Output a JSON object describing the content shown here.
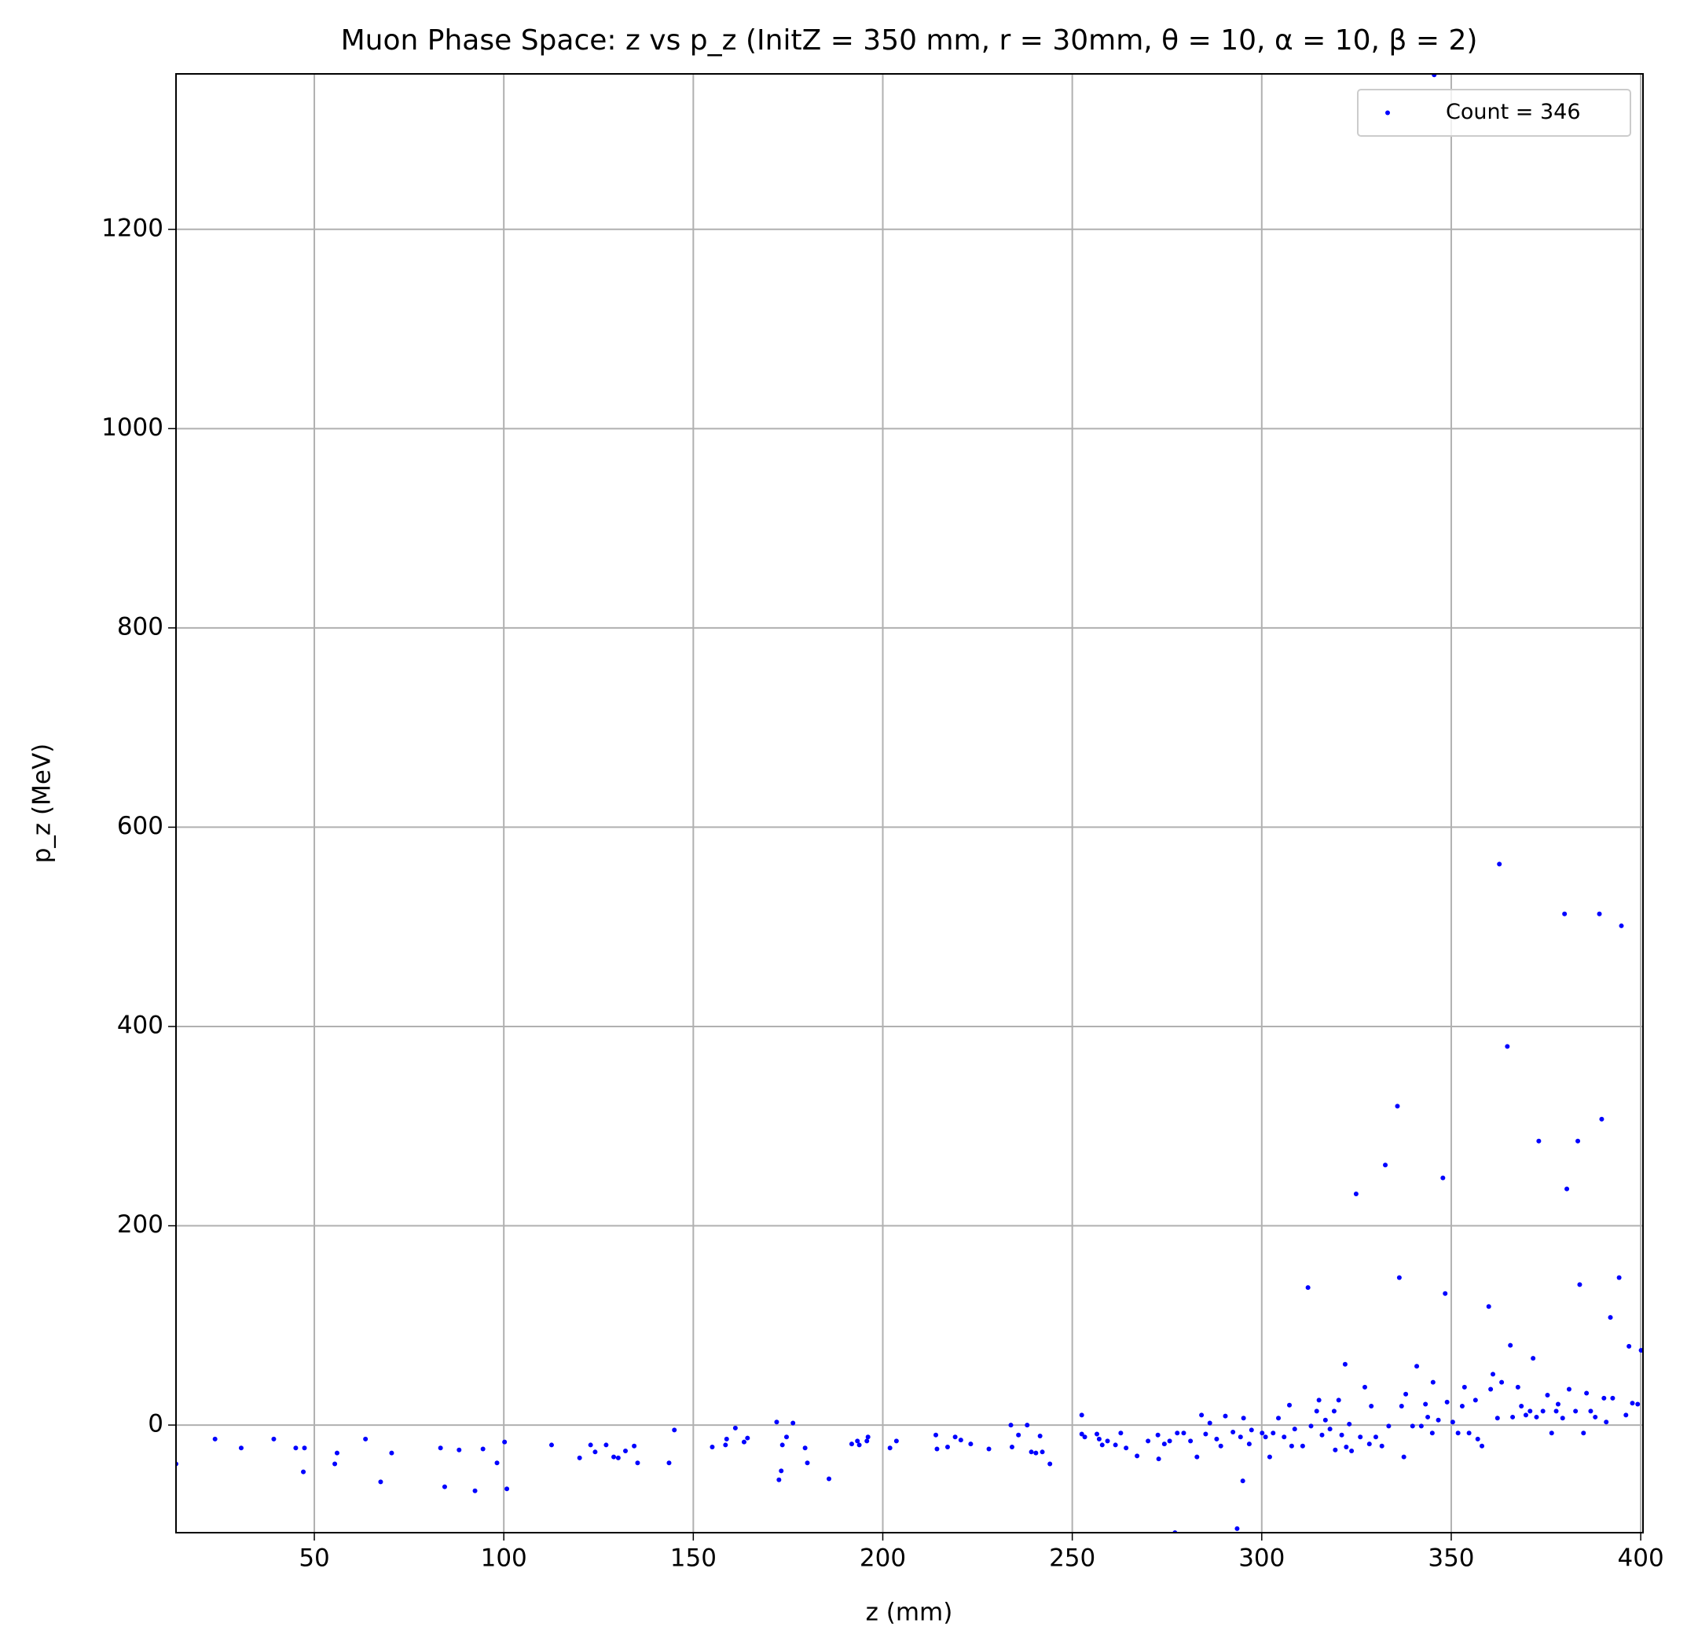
{
  "chart_data": {
    "type": "scatter",
    "title": "Muon Phase Space: z vs p_z (InitZ = 350 mm, r = 30mm, θ = 10, α = 10, β = 2)",
    "x_label": "z (mm)",
    "y_label": "p_z (MeV)",
    "x": [
      13.5,
      23.8,
      30.7,
      39.3,
      45.1,
      47.4,
      47.1,
      56,
      55.4,
      63.5,
      67.5,
      70.4,
      83.3,
      84.4,
      88.2,
      92.4,
      94.5,
      98.2,
      100.2,
      100.8,
      112.6,
      120,
      122.9,
      124.1,
      127,
      129,
      130.2,
      132.1,
      134.4,
      135.3,
      143.6,
      145,
      155,
      158.5,
      158.8,
      161.1,
      163.4,
      164.3,
      172,
      172.6,
      173.2,
      173.5,
      174.6,
      176.3,
      179.5,
      180.1,
      185.8,
      191.8,
      193.3,
      193.8,
      195.8,
      196.1,
      201.9,
      203.6,
      214,
      214.3,
      217.1,
      219.1,
      220.6,
      223.2,
      228,
      233.8,
      234.1,
      235.8,
      238.1,
      239.2,
      240.4,
      241.5,
      242.1,
      244.1,
      252.5,
      252.5,
      253.3,
      256.5,
      257.1,
      257.9,
      259.3,
      261.4,
      262.8,
      264.2,
      267.1,
      270,
      272.6,
      272.8,
      274.3,
      275.7,
      277.1,
      277.7,
      279.4,
      281.2,
      282.9,
      284.1,
      285.2,
      286.3,
      288.1,
      289.2,
      290.4,
      292.4,
      293.5,
      294.4,
      295,
      295.2,
      296.7,
      297.3,
      300.1,
      301,
      302.1,
      303,
      304.4,
      305.9,
      307.3,
      307.9,
      308.7,
      310.8,
      312.2,
      313,
      314.5,
      315.1,
      315.9,
      316.8,
      318,
      319.1,
      319.4,
      320.3,
      321.1,
      322,
      322.3,
      323.1,
      323.7,
      324.9,
      326,
      327.2,
      328.4,
      328.9,
      330.1,
      331.7,
      332.6,
      333.5,
      335.8,
      336.3,
      336.9,
      337.5,
      338,
      339.8,
      340.9,
      342.1,
      343.2,
      343.8,
      345,
      345.2,
      345.5,
      346.6,
      347.8,
      348.4,
      348.9,
      350.4,
      351.8,
      352.9,
      353.5,
      354.7,
      356.4,
      357,
      358.1,
      359.9,
      360.4,
      361,
      362.2,
      362.7,
      363.3,
      364.8,
      365.6,
      366.2,
      367.6,
      368.5,
      369.7,
      370.8,
      371.6,
      372.5,
      373.1,
      374.2,
      375.4,
      376.5,
      377.7,
      378.2,
      379.4,
      379.9,
      380.5,
      381.1,
      382.8,
      383.4,
      383.9,
      384.9,
      385.7,
      386.8,
      388,
      389.1,
      389.7,
      390.3,
      390.9,
      392,
      392.6,
      394.3,
      394.9,
      396.1,
      396.9,
      397.8,
      399.2,
      400.1
    ],
    "series": [
      {
        "name": "Count = 346",
        "color": "#0000ff",
        "values": [
          -39,
          -14,
          -23,
          -14,
          -23,
          -23,
          -47,
          -28,
          -39,
          -14,
          -57,
          -28,
          -23,
          -62,
          -25,
          -66,
          -24,
          -38,
          -17,
          -64,
          -20,
          -33,
          -20,
          -27,
          -20,
          -32,
          -33,
          -26,
          -21,
          -38,
          -38,
          -5,
          -22,
          -20,
          -14,
          -3,
          -17,
          -13,
          3,
          -55,
          -46,
          -20,
          -12,
          2,
          -23,
          -38,
          -54,
          -19,
          -16,
          -20,
          -16,
          -12,
          -23,
          -16,
          -10,
          -24,
          -22,
          -12,
          -15,
          -19,
          -24,
          0,
          -22,
          -10,
          0,
          -27,
          -28,
          -11,
          -27,
          -39,
          10,
          -9,
          -12,
          -9,
          -14,
          -20,
          -16,
          -20,
          -8,
          -23,
          -31,
          -16,
          -10,
          -34,
          -19,
          -16,
          -108,
          -8,
          -8,
          -16,
          -32,
          10,
          -9,
          2,
          -14,
          -21,
          9,
          -7,
          -104,
          -12,
          -56,
          7,
          -19,
          -5,
          -8,
          -12,
          -32,
          -8,
          7,
          -12,
          20,
          -21,
          -4,
          -21,
          138,
          -1,
          14,
          25,
          -10,
          5,
          -4,
          14,
          -25,
          25,
          -10,
          61,
          -22,
          1,
          -26,
          232,
          -12,
          38,
          -19,
          19,
          -12,
          -21,
          261,
          -1,
          320,
          148,
          19,
          -32,
          31,
          -1,
          59,
          -1,
          21,
          8,
          -8,
          43,
          1355,
          5,
          248,
          132,
          23,
          3,
          -8,
          19,
          38,
          -8,
          25,
          -14,
          -21,
          119,
          36,
          51,
          7,
          563,
          43,
          380,
          80,
          8,
          38,
          19,
          10,
          14,
          67,
          8,
          285,
          14,
          30,
          -8,
          14,
          21,
          7,
          513,
          237,
          36,
          14,
          285,
          141,
          -8,
          32,
          14,
          8,
          513,
          307,
          27,
          3,
          108,
          27,
          148,
          501,
          10,
          79,
          22,
          21,
          75
        ]
      }
    ],
    "xlim": [
      13.5,
      400.6
    ],
    "ylim": [
      -108,
      1356
    ],
    "xticks": [
      50,
      100,
      150,
      200,
      250,
      300,
      350,
      400
    ],
    "yticks": [
      0,
      200,
      400,
      600,
      800,
      1000,
      1200
    ],
    "grid": true,
    "legend": "upper right"
  }
}
